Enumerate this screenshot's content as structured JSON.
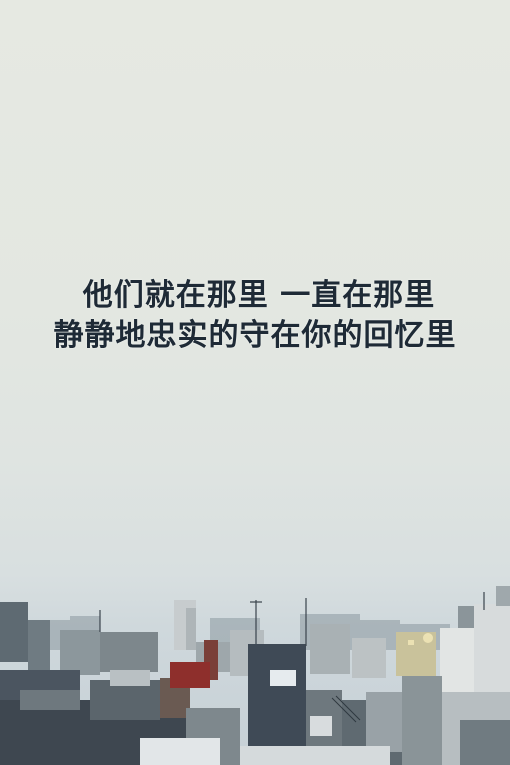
{
  "quote": {
    "line1": "他们就在那里 一直在那里",
    "line2": "静静地忠实的守在你的回忆里"
  },
  "colors": {
    "sky_top": "#e6e9e2",
    "sky_bottom": "#c6d0d6",
    "text": "#1e2a36"
  }
}
